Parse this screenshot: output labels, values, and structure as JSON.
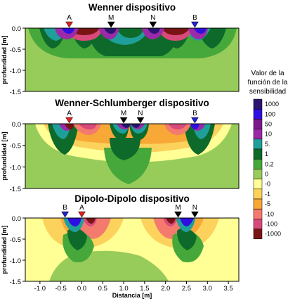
{
  "chart_data": [
    {
      "type": "heatmap",
      "title": "Wenner dispositivo",
      "ylabel": "profundidad [m]",
      "xlabel": "",
      "xlim": [
        -1.35,
        3.75
      ],
      "ylim": [
        -1.5,
        0.0
      ],
      "yticks": [
        "0.0",
        "-0.5",
        "-1.0",
        "-1.5"
      ],
      "xticks": [],
      "electrodes": [
        {
          "label": "A",
          "x": -0.3,
          "color": "#e02020"
        },
        {
          "label": "M",
          "x": 0.7,
          "color": "#000000"
        },
        {
          "label": "N",
          "x": 1.7,
          "color": "#000000"
        },
        {
          "label": "B",
          "x": 2.7,
          "color": "#2020d0"
        }
      ]
    },
    {
      "type": "heatmap",
      "title": "Wenner-Schlumberger dispositivo",
      "ylabel": "profundidad [m]",
      "xlabel": "",
      "xlim": [
        -1.35,
        3.75
      ],
      "ylim": [
        -1.5,
        0.0
      ],
      "yticks": [
        "0.0",
        "-0.5",
        "-1.0",
        "-1.5"
      ],
      "xticks": [],
      "electrodes": [
        {
          "label": "A",
          "x": -0.3,
          "color": "#e02020"
        },
        {
          "label": "M",
          "x": 1.0,
          "color": "#000000"
        },
        {
          "label": "N",
          "x": 1.4,
          "color": "#000000"
        },
        {
          "label": "B",
          "x": 2.7,
          "color": "#2020d0"
        }
      ]
    },
    {
      "type": "heatmap",
      "title": "Dipolo-Dipolo dispositivo",
      "ylabel": "profundidad [m]",
      "xlabel": "Distancia [m]",
      "xlim": [
        -1.35,
        3.75
      ],
      "ylim": [
        -1.5,
        0.0
      ],
      "yticks": [
        "0.0",
        "-0.5",
        "-1.0",
        "-1.5"
      ],
      "xticks": [
        "-1.0",
        "-0.5",
        "0.0",
        "0.5",
        "1.0",
        "1.5",
        "2.0",
        "2.5",
        "3.0",
        "3.5"
      ],
      "electrodes": [
        {
          "label": "B",
          "x": -0.4,
          "color": "#2020d0"
        },
        {
          "label": "A",
          "x": 0.0,
          "color": "#e02020"
        },
        {
          "label": "M",
          "x": 2.3,
          "color": "#000000"
        },
        {
          "label": "N",
          "x": 2.7,
          "color": "#000000"
        }
      ]
    }
  ],
  "legend": {
    "title": [
      "Valor de la",
      "función de la",
      "sensibilidad"
    ],
    "entries": [
      {
        "label": "1000",
        "color": "#2a1470"
      },
      {
        "label": "100",
        "color": "#2f0ee0"
      },
      {
        "label": "50",
        "color": "#7a1a8a"
      },
      {
        "label": "10",
        "color": "#9a2aa8"
      },
      {
        "label": "5.",
        "color": "#1f9f9a"
      },
      {
        "label": "1",
        "color": "#0e6a2a"
      },
      {
        "label": "0.2",
        "color": "#46a83a"
      },
      {
        "label": "0",
        "color": "#98cc5a"
      },
      {
        "label": "-0",
        "color": "#ffff96"
      },
      {
        "label": "-1",
        "color": "#fcd25c"
      },
      {
        "label": "-5",
        "color": "#f7a836"
      },
      {
        "label": "-10",
        "color": "#f47a6e"
      },
      {
        "label": "-100",
        "color": "#d84a7a"
      },
      {
        "label": "-1000",
        "color": "#7a1414"
      }
    ]
  }
}
